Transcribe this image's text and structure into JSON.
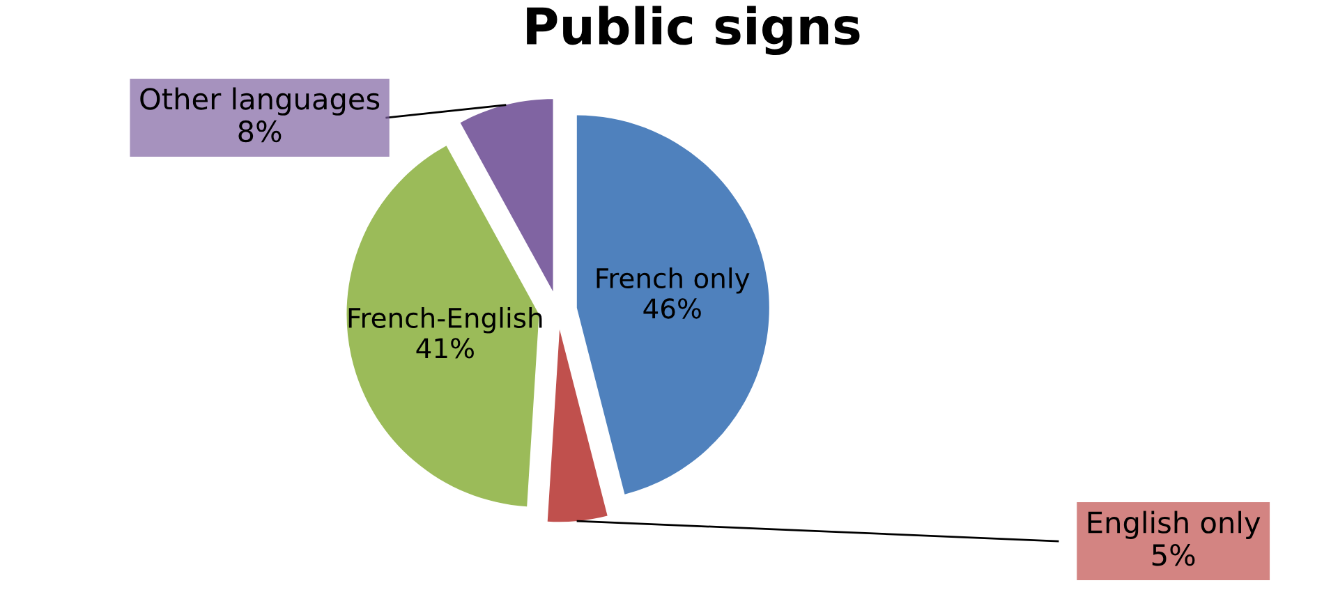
{
  "chart_data": {
    "type": "pie",
    "title": "Public signs",
    "categories": [
      "French only",
      "English only",
      "French-English",
      "Other languages"
    ],
    "values": [
      46,
      5,
      41,
      8
    ],
    "value_labels": [
      "46%",
      "5%",
      "41%",
      "8%"
    ],
    "colors": [
      "#4f81bd",
      "#c0504d",
      "#9bbb59",
      "#8064a2"
    ]
  }
}
